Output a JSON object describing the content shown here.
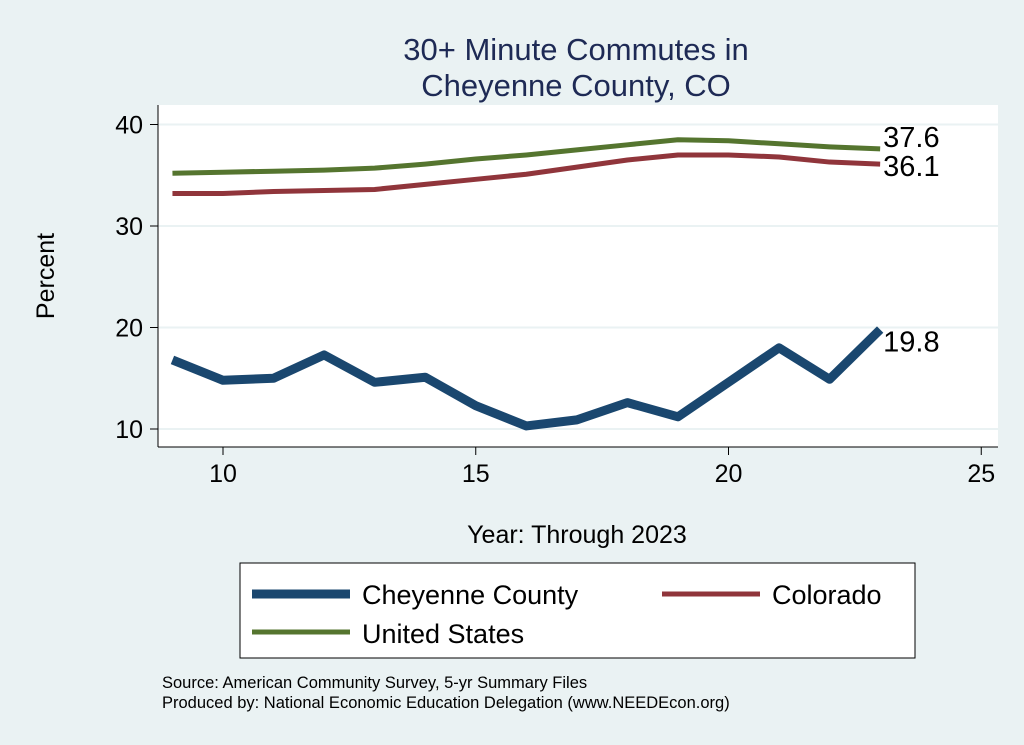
{
  "chart_data": {
    "type": "line",
    "title": [
      "30+ Minute Commutes in",
      "Cheyenne County, CO"
    ],
    "xlabel": "Year: Through 2023",
    "ylabel": "Percent",
    "xlim": [
      8.7,
      25.3
    ],
    "ylim": [
      8.2,
      41.8
    ],
    "xticks": [
      10,
      15,
      20,
      25
    ],
    "yticks": [
      10,
      20,
      30,
      40
    ],
    "grid": true,
    "x": [
      9,
      10,
      11,
      12,
      13,
      14,
      15,
      16,
      17,
      18,
      19,
      20,
      21,
      22,
      23
    ],
    "series": [
      {
        "name": "Cheyenne County",
        "color": "#1a476f",
        "width": 9,
        "values": [
          16.8,
          14.8,
          15.0,
          17.3,
          14.6,
          15.1,
          12.3,
          10.3,
          10.9,
          12.6,
          11.2,
          14.6,
          18.0,
          14.9,
          19.8
        ],
        "end_label": "19.8"
      },
      {
        "name": "Colorado",
        "color": "#90353b",
        "width": 5,
        "values": [
          33.2,
          33.2,
          33.4,
          33.5,
          33.6,
          34.1,
          34.6,
          35.1,
          35.8,
          36.5,
          37.0,
          37.0,
          36.8,
          36.3,
          36.1
        ],
        "end_label": "36.1"
      },
      {
        "name": "United States",
        "color": "#55752f",
        "width": 5,
        "values": [
          35.2,
          35.3,
          35.4,
          35.5,
          35.7,
          36.1,
          36.6,
          37.0,
          37.5,
          38.0,
          38.5,
          38.4,
          38.1,
          37.8,
          37.6
        ],
        "end_label": "37.6"
      }
    ],
    "legend_position": "bottom",
    "notes": [
      "Source: American Community Survey, 5-yr Summary Files",
      "Produced by: National Economic Education Delegation (www.NEEDEcon.org)"
    ]
  }
}
